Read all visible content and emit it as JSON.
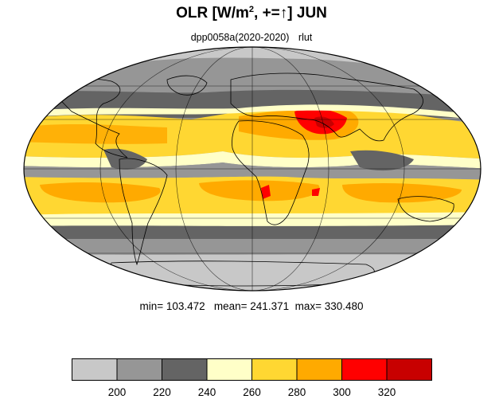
{
  "title": {
    "prefix": "OLR [W/m",
    "sup": "2",
    "suffix": ", +=↑] JUN"
  },
  "subtitle": {
    "experiment": "dpp0058a(2020-2020)",
    "variable": "rlut"
  },
  "stats": {
    "min": "103.472",
    "mean": "241.371",
    "max": "330.480",
    "text": "min= 103.472   mean= 241.371  max= 330.480"
  },
  "colorbar": {
    "colors": [
      "#c8c8c8",
      "#969696",
      "#646464",
      "#ffffc8",
      "#ffd732",
      "#ffaa00",
      "#ff0000",
      "#c80000"
    ],
    "labels": [
      "200",
      "220",
      "240",
      "260",
      "280",
      "300",
      "320"
    ]
  },
  "map": {
    "projection": "Mollweide",
    "land_outline_color": "#000000",
    "grid_color": "#000000"
  }
}
